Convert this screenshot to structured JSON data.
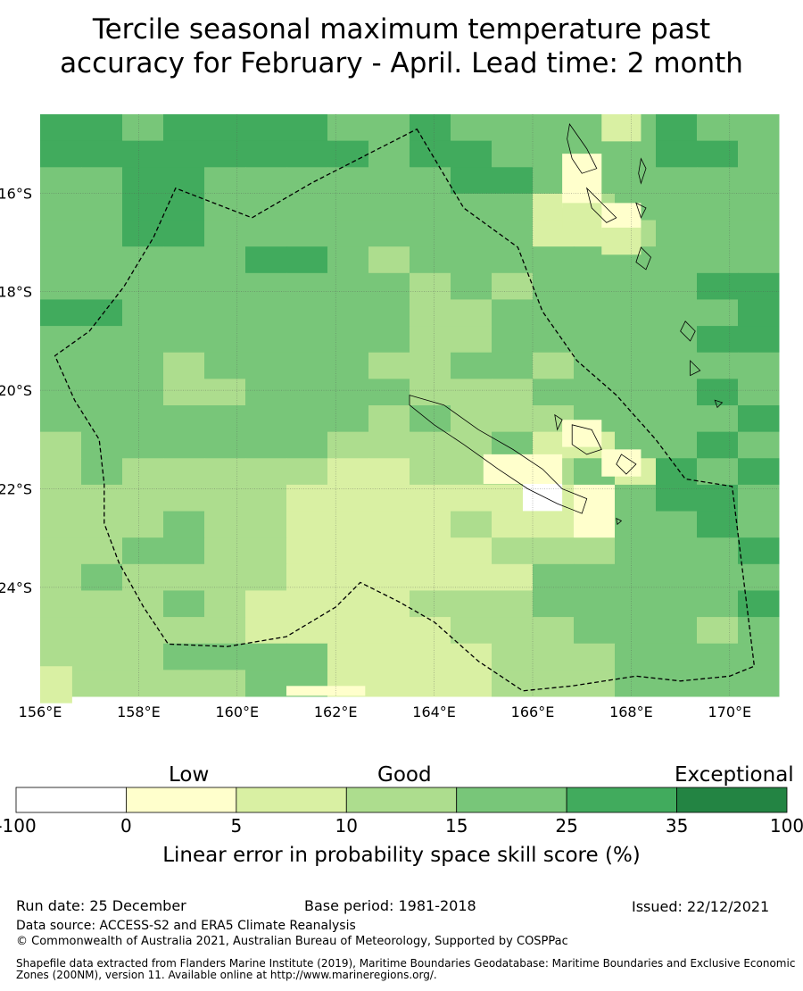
{
  "title": {
    "line1": "Tercile seasonal maximum temperature past",
    "line2": "accuracy for February - April. Lead time: 2 month"
  },
  "map": {
    "lon_range": [
      156,
      171
    ],
    "lat_range": [
      -26.2,
      -14.3
    ],
    "x_ticks": [
      "156°E",
      "158°E",
      "160°E",
      "162°E",
      "164°E",
      "166°E",
      "168°E",
      "170°E"
    ],
    "y_ticks": [
      "16°S",
      "18°S",
      "20°S",
      "22°S",
      "24°S"
    ],
    "grid": "dotted",
    "eez_boundary": "dashed",
    "color_classes": {
      "neg": "#ffffff",
      "c0": "#ffffcc",
      "c5": "#d9f0a3",
      "c10": "#addd8e",
      "c15": "#78c679",
      "c25": "#41ab5d",
      "c35": "#238443"
    }
  },
  "legend": {
    "words": [
      "Low",
      "Good",
      "Exceptional"
    ],
    "ticks": [
      "-100",
      "0",
      "5",
      "10",
      "15",
      "25",
      "35",
      "100"
    ],
    "colors": [
      "#ffffff",
      "#ffffcc",
      "#d9f0a3",
      "#addd8e",
      "#78c679",
      "#41ab5d",
      "#238443"
    ],
    "label": "Linear error in probability space skill score (%)"
  },
  "footer": {
    "run_date": "Run date: 25 December",
    "base_period": "Base period: 1981-2018",
    "issued": "Issued: 22/12/2021",
    "data_source": "Data source: ACCESS-S2 and ERA5 Climate Reanalysis",
    "copyright": "© Commonwealth of Australia 2021, Australian Bureau of Meteorology, Supported by COSPPac",
    "shapefile": "Shapefile data extracted from Flanders Marine Institute (2019), Maritime Boundaries Geodatabase: Maritime Boundaries and Exclusive Economic Zones (200NM), version 11. Available online at http://www.marineregions.org/."
  }
}
